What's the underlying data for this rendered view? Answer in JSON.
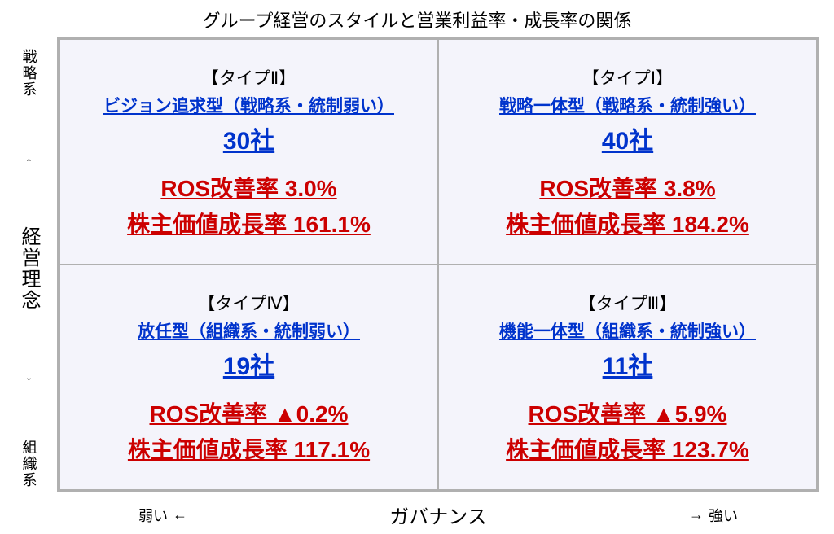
{
  "title": "グループ経営のスタイルと営業利益率・成長率の関係",
  "matrix": {
    "type": "quadrant-matrix",
    "background_color": "#f4f4fb",
    "border_color": "#b0b0b0",
    "colors": {
      "type_label": "#000000",
      "description": "#0033cc",
      "count": "#0033cc",
      "metrics": "#cc0000"
    },
    "fontsize": {
      "title": 22,
      "type_label": 21,
      "description": 21,
      "count": 30,
      "metrics": 28,
      "axis_main": 24,
      "axis_side": 18
    },
    "cells": {
      "top_left": {
        "type_label": "【タイプⅡ】",
        "description": "ビジョン追求型（戦略系・統制弱い）",
        "count": "30社",
        "ros": "ROS改善率 3.0%",
        "growth": "株主価値成長率 161.1%"
      },
      "top_right": {
        "type_label": "【タイプⅠ】",
        "description": "戦略一体型（戦略系・統制強い）",
        "count": "40社",
        "ros": "ROS改善率 3.8%",
        "growth": "株主価値成長率 184.2%"
      },
      "bottom_left": {
        "type_label": "【タイプⅣ】",
        "description": "放任型（組織系・統制弱い）",
        "count": "19社",
        "ros": "ROS改善率 ▲0.2%",
        "growth": "株主価値成長率 117.1%"
      },
      "bottom_right": {
        "type_label": "【タイプⅢ】",
        "description": "機能一体型（組織系・統制強い）",
        "count": "11社",
        "ros": "ROS改善率 ▲5.9%",
        "growth": "株主価値成長率 123.7%"
      }
    }
  },
  "axes": {
    "y": {
      "top_label": "戦略系",
      "arrow_up": "↑",
      "main_label": "経営理念",
      "arrow_down": "↓",
      "bottom_label": "組織系"
    },
    "x": {
      "left_label": "弱い",
      "arrow_left": "←",
      "main_label": "ガバナンス",
      "arrow_right": "→",
      "right_label": "強い"
    }
  }
}
